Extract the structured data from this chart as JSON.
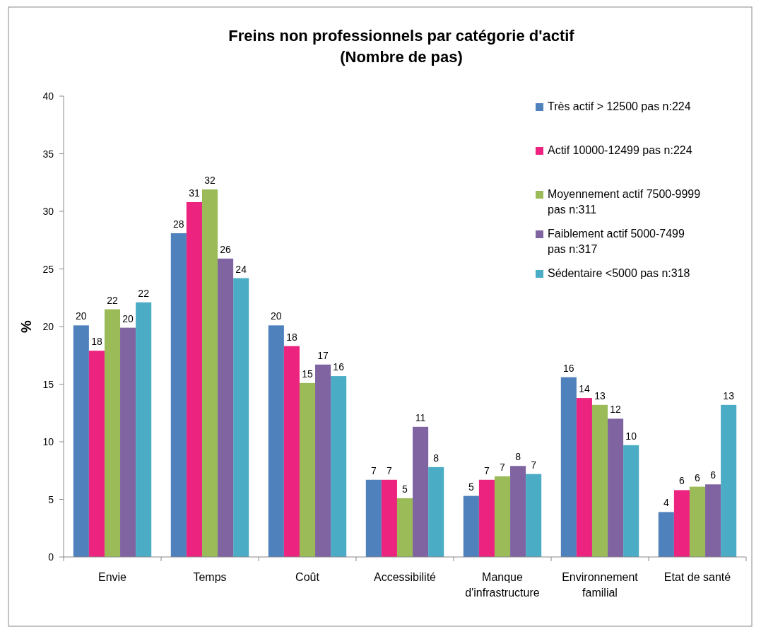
{
  "chart_data": {
    "type": "bar",
    "title": "Freins non professionnels par catégorie d'actif\n(Nombre de pas)",
    "ylabel": "%",
    "categories": [
      "Envie",
      "Temps",
      "Coût",
      "Accessibilité",
      "Manque d'infrastructure",
      "Environnement familial",
      "Etat de santé"
    ],
    "series": [
      {
        "name": "Très actif > 12500 pas n:224",
        "color": "#4f81bd",
        "values": [
          20.1,
          28.1,
          20.1,
          6.7,
          5.3,
          15.6,
          3.9
        ],
        "value_labels": [
          "20",
          "28",
          "20",
          "7",
          "5",
          "16",
          "4"
        ]
      },
      {
        "name": "Actif 10000-12499 pas n:224",
        "color": "#ec247f",
        "values": [
          17.9,
          30.8,
          18.3,
          6.7,
          6.7,
          13.8,
          5.8
        ],
        "value_labels": [
          "18",
          "31",
          "18",
          "7",
          "7",
          "14",
          "6"
        ]
      },
      {
        "name": "Moyennement actif 7500-9999 pas n:311",
        "color": "#9bbb59",
        "values": [
          21.5,
          31.9,
          15.1,
          5.1,
          7.0,
          13.2,
          6.1
        ],
        "value_labels": [
          "22",
          "32",
          "15",
          "5",
          "7",
          "13",
          "6"
        ]
      },
      {
        "name": "Faiblement actif 5000-7499 pas n:317",
        "color": "#8064a2",
        "values": [
          19.9,
          25.9,
          16.7,
          11.3,
          7.9,
          12.0,
          6.3
        ],
        "value_labels": [
          "20",
          "26",
          "17",
          "11",
          "8",
          "12",
          "6"
        ]
      },
      {
        "name": "Sédentaire <5000 pas n:318",
        "color": "#4bacc6",
        "values": [
          22.1,
          24.2,
          15.7,
          7.8,
          7.2,
          9.7,
          13.2
        ],
        "value_labels": [
          "22",
          "24",
          "16",
          "8",
          "7",
          "10",
          "13"
        ]
      }
    ],
    "ylim": [
      0,
      40
    ],
    "yticks": [
      0,
      5,
      10,
      15,
      20,
      25,
      30,
      35,
      40
    ],
    "grid": false,
    "legend": "top right"
  }
}
